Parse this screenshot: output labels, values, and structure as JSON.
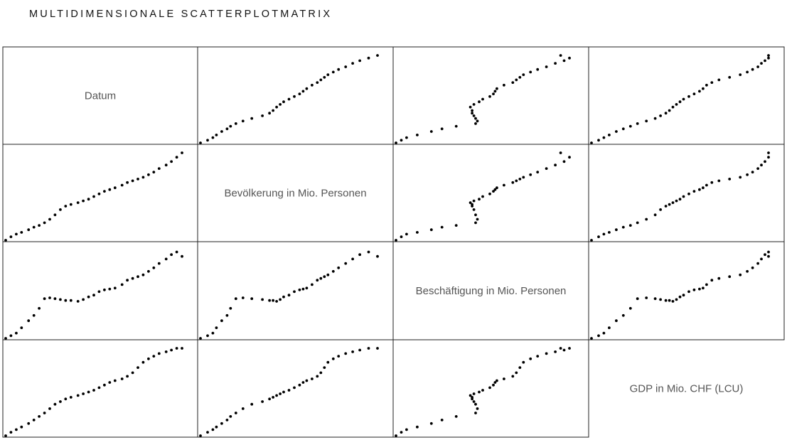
{
  "title": "MULTIDIMENSIONALE SCATTERPLOTMATRIX",
  "colors": {
    "point": "#000000",
    "frame": "#222222",
    "label": "#555555",
    "title": "#111111"
  },
  "chart_data": {
    "type": "scatter",
    "matrix": "scatterplot-matrix",
    "variables": [
      "Datum",
      "Bevölkerung in Mio. Personen",
      "Beschäftigung in Mio. Personen",
      "GDP in Mio. CHF (LCU)"
    ],
    "axis_ticks_shown": false,
    "grid": false,
    "note": "",
    "normalized_observations": {
      "datum": [
        0.0,
        0.03,
        0.06,
        0.09,
        0.13,
        0.16,
        0.19,
        0.22,
        0.25,
        0.28,
        0.31,
        0.34,
        0.37,
        0.41,
        0.44,
        0.47,
        0.5,
        0.53,
        0.56,
        0.59,
        0.62,
        0.66,
        0.69,
        0.72,
        0.75,
        0.78,
        0.81,
        0.84,
        0.87,
        0.91,
        0.94,
        0.97,
        1.0
      ],
      "bevoelkerung": [
        0.0,
        0.04,
        0.07,
        0.09,
        0.12,
        0.15,
        0.17,
        0.2,
        0.24,
        0.29,
        0.35,
        0.39,
        0.41,
        0.43,
        0.45,
        0.47,
        0.5,
        0.53,
        0.56,
        0.58,
        0.6,
        0.63,
        0.66,
        0.68,
        0.7,
        0.72,
        0.75,
        0.78,
        0.82,
        0.86,
        0.9,
        0.95,
        1.0
      ],
      "beschaeftigung": [
        0.0,
        0.03,
        0.06,
        0.12,
        0.2,
        0.26,
        0.34,
        0.45,
        0.46,
        0.45,
        0.44,
        0.43,
        0.43,
        0.42,
        0.44,
        0.47,
        0.49,
        0.53,
        0.55,
        0.56,
        0.57,
        0.61,
        0.66,
        0.68,
        0.7,
        0.72,
        0.76,
        0.8,
        0.85,
        0.9,
        0.95,
        0.98,
        0.93
      ],
      "gdp": [
        0.0,
        0.04,
        0.07,
        0.1,
        0.14,
        0.18,
        0.22,
        0.26,
        0.31,
        0.36,
        0.39,
        0.42,
        0.44,
        0.46,
        0.48,
        0.5,
        0.52,
        0.55,
        0.58,
        0.61,
        0.63,
        0.65,
        0.68,
        0.72,
        0.78,
        0.84,
        0.88,
        0.91,
        0.94,
        0.96,
        0.98,
        1.0,
        1.0
      ]
    }
  }
}
